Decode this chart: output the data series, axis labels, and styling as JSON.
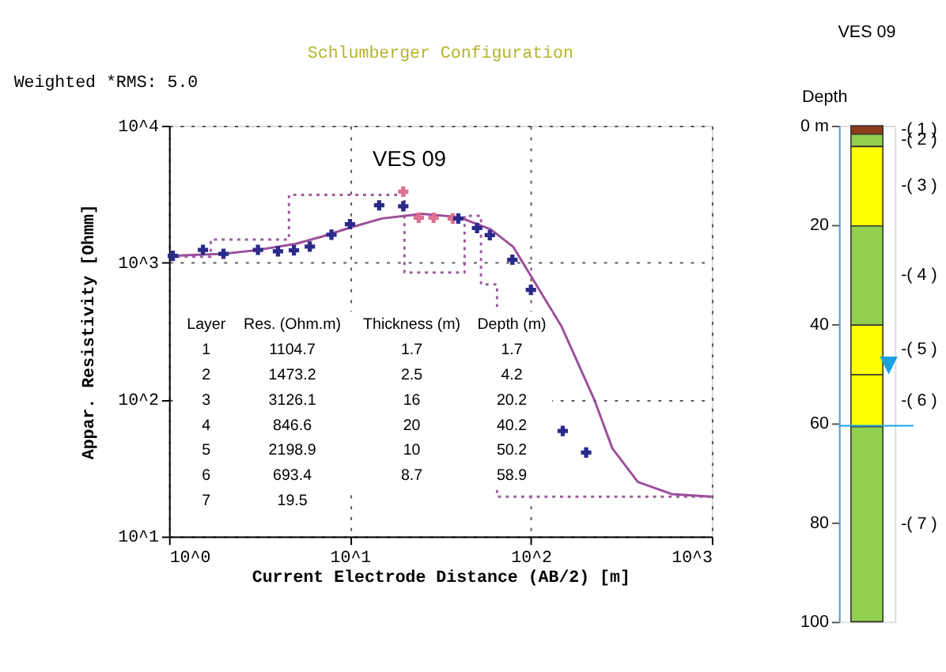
{
  "chart_data": [
    {
      "type": "line",
      "title": "Schlumberger Configuration",
      "xlabel": "Current Electrode Distance (AB/2) [m]",
      "ylabel": "Appar. Resistivity [Ohmm]",
      "log": "xy",
      "grid": true,
      "xlim": [
        1,
        1000
      ],
      "ylim": [
        10,
        10000
      ],
      "xticks": [
        {
          "value": 1,
          "label": "10^0"
        },
        {
          "value": 10,
          "label": "10^1"
        },
        {
          "value": 100,
          "label": "10^2"
        },
        {
          "value": 1000,
          "label": "10^3"
        }
      ],
      "yticks": [
        {
          "value": 10,
          "label": "10^1"
        },
        {
          "value": 100,
          "label": "10^2"
        },
        {
          "value": 1000,
          "label": "10^3"
        },
        {
          "value": 10000,
          "label": "10^4"
        }
      ],
      "series": [
        {
          "type": "step",
          "color": "#a05ca0",
          "line_style": "dotted",
          "x": [
            1,
            1.7,
            4.6,
            20,
            43,
            53,
            65,
            1000
          ],
          "values": [
            1104.7,
            1473.2,
            3126.1,
            846.6,
            2198.9,
            693.4,
            19.5,
            19.5
          ]
        },
        {
          "type": "line",
          "color": "#9b4f9b",
          "line_style": "solid",
          "x": [
            1,
            2,
            3,
            5,
            7,
            10,
            15,
            25,
            40,
            60,
            80,
            100,
            148,
            224,
            282,
            390,
            600,
            1000
          ],
          "values": [
            1120,
            1160,
            1230,
            1370,
            1550,
            1800,
            2100,
            2270,
            2150,
            1750,
            1300,
            800,
            340,
            100,
            44,
            25,
            20.4,
            19.5
          ]
        },
        {
          "type": "scatter",
          "color": "#e07090",
          "marker": "cross",
          "x": [
            19.7,
            24,
            29,
            37
          ],
          "values": [
            3300,
            2130,
            2130,
            2100
          ]
        },
        {
          "type": "scatter",
          "color": "#2a2a8a",
          "marker": "cross",
          "x": [
            1.05,
            1.54,
            2.0,
            3.1,
            4.0,
            4.9,
            6.0,
            7.9,
            10,
            14.5,
            19.7,
            39.7,
            50.4,
            59.3,
            79,
            100,
            150,
            202
          ],
          "values": [
            1120,
            1240,
            1160,
            1240,
            1210,
            1230,
            1310,
            1600,
            1910,
            2620,
            2580,
            2100,
            1790,
            1590,
            1050,
            633,
            59,
            41
          ]
        }
      ],
      "annotations": [
        "Weighted *RMS: 5.0",
        "VES 09",
        "Layer",
        "Res. (Ohm.m)",
        "Thickness (m)",
        "Depth (m)",
        "1",
        "1104.7",
        "1.7",
        "1.7",
        "2",
        "1473.2",
        "2.5",
        "4.2",
        "3",
        "3126.1",
        "16",
        "20.2",
        "4",
        "846.6",
        "20",
        "40.2",
        "5",
        "2198.9",
        "10",
        "50.2",
        "6",
        "693.4",
        "8.7",
        "58.9",
        "7",
        "19.5"
      ]
    },
    {
      "type": "bar",
      "stacked": true,
      "title": "VES 09",
      "ylabel": "Depth",
      "categories": [
        null
      ],
      "ylim": [
        100,
        0
      ],
      "yticks": [
        100,
        80,
        60,
        40,
        20,
        {
          "value": 0,
          "label": "0 m"
        }
      ],
      "series": [
        {
          "name": "-( 1 )",
          "color": "#8b3a1a",
          "values": [
            1.7
          ]
        },
        {
          "name": "-( 2 )",
          "color": "#92d050",
          "values": [
            2.5
          ]
        },
        {
          "name": "-( 3 )",
          "color": "#ffff00",
          "values": [
            16
          ]
        },
        {
          "name": "-( 4 )",
          "color": "#92d050",
          "values": [
            20
          ]
        },
        {
          "name": "-( 5 )",
          "color": "#ffff00",
          "values": [
            10
          ]
        },
        {
          "name": "-( 6 )",
          "color": "#ffff00",
          "values": [
            10.5
          ]
        },
        {
          "name": "-( 7 )",
          "color": "#92d050",
          "values": [
            39.3
          ]
        }
      ],
      "annotations": [
        {
          "text": "▼",
          "y": 48
        }
      ],
      "ref_lines": [
        {
          "axis": "y",
          "value": 60.5,
          "color": "#1ba1e2"
        }
      ]
    }
  ]
}
